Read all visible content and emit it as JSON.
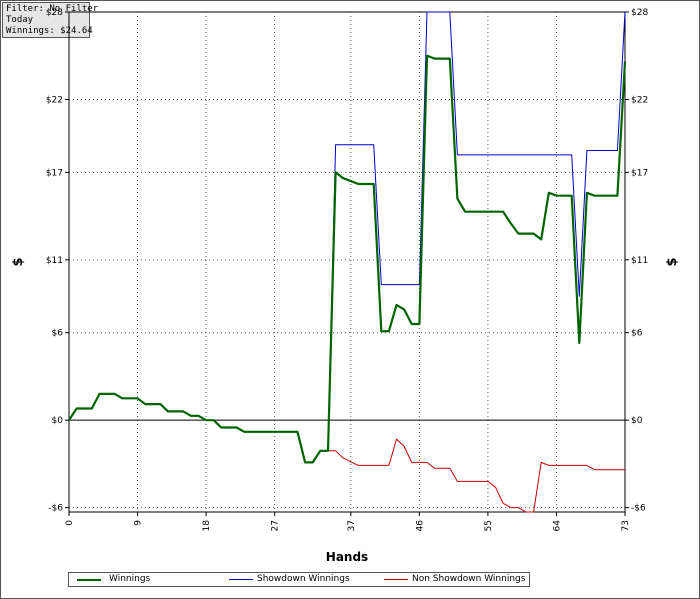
{
  "info_box": {
    "filter": "Filter: No Filter",
    "period": "Today",
    "winnings": "Winnings: $24.64"
  },
  "chart_data": {
    "type": "line",
    "title": "",
    "xlabel": "Hands",
    "ylabel_left": "$",
    "ylabel_right": "$",
    "xlim": [
      0,
      73
    ],
    "ylim": [
      -6.3,
      28
    ],
    "x_ticks": [
      0,
      9,
      18,
      27,
      37,
      46,
      55,
      64,
      73
    ],
    "y_ticks": [
      -6,
      0,
      6,
      11,
      17,
      22,
      28
    ],
    "y_tick_labels": [
      "-$6",
      "$0",
      "$6",
      "$11",
      "$17",
      "$22",
      "$28"
    ],
    "grid": true,
    "legend_position": "bottom-left",
    "series": [
      {
        "name": "Winnings",
        "color": "#006400",
        "points": [
          [
            0,
            0
          ],
          [
            1,
            0.8
          ],
          [
            3,
            0.8
          ],
          [
            4,
            1.8
          ],
          [
            6,
            1.8
          ],
          [
            7,
            1.5
          ],
          [
            9,
            1.5
          ],
          [
            10,
            1.1
          ],
          [
            12,
            1.1
          ],
          [
            13,
            0.6
          ],
          [
            15,
            0.6
          ],
          [
            16,
            0.3
          ],
          [
            17,
            0.3
          ],
          [
            18,
            0
          ],
          [
            19,
            0
          ],
          [
            20,
            -0.5
          ],
          [
            22,
            -0.5
          ],
          [
            23,
            -0.8
          ],
          [
            30,
            -0.8
          ],
          [
            31,
            -2.9
          ],
          [
            32,
            -2.9
          ],
          [
            33,
            -2.1
          ],
          [
            34,
            -2.1
          ],
          [
            35,
            17.0
          ],
          [
            36,
            16.6
          ],
          [
            38,
            16.2
          ],
          [
            40,
            16.2
          ],
          [
            41,
            6.1
          ],
          [
            42,
            6.1
          ],
          [
            43,
            7.9
          ],
          [
            44,
            7.6
          ],
          [
            45,
            6.6
          ],
          [
            46,
            6.6
          ],
          [
            47,
            25.0
          ],
          [
            48,
            24.8
          ],
          [
            50,
            24.8
          ],
          [
            51,
            15.2
          ],
          [
            52,
            14.3
          ],
          [
            55,
            14.3
          ],
          [
            57,
            14.3
          ],
          [
            58,
            13.5
          ],
          [
            59,
            12.8
          ],
          [
            61,
            12.8
          ],
          [
            62,
            12.4
          ],
          [
            63,
            15.6
          ],
          [
            64,
            15.4
          ],
          [
            66,
            15.4
          ],
          [
            67,
            5.3
          ],
          [
            68,
            15.6
          ],
          [
            69,
            15.4
          ],
          [
            72,
            15.4
          ],
          [
            73,
            24.6
          ]
        ]
      },
      {
        "name": "Showdown Winnings",
        "color": "#0000cc",
        "points": [
          [
            0,
            0
          ],
          [
            1,
            0.8
          ],
          [
            3,
            0.8
          ],
          [
            4,
            1.8
          ],
          [
            6,
            1.8
          ],
          [
            7,
            1.5
          ],
          [
            9,
            1.5
          ],
          [
            10,
            1.1
          ],
          [
            12,
            1.1
          ],
          [
            13,
            0.6
          ],
          [
            15,
            0.6
          ],
          [
            16,
            0.3
          ],
          [
            17,
            0.3
          ],
          [
            18,
            0
          ],
          [
            19,
            0
          ],
          [
            20,
            -0.5
          ],
          [
            22,
            -0.5
          ],
          [
            23,
            -0.8
          ],
          [
            30,
            -0.8
          ],
          [
            31,
            -2.9
          ],
          [
            32,
            -2.9
          ],
          [
            33,
            -2.1
          ],
          [
            34,
            -2.1
          ],
          [
            35,
            18.9
          ],
          [
            40,
            18.9
          ],
          [
            41,
            9.3
          ],
          [
            46,
            9.3
          ],
          [
            47,
            28
          ],
          [
            50,
            28
          ],
          [
            51,
            18.2
          ],
          [
            66,
            18.2
          ],
          [
            67,
            8.5
          ],
          [
            68,
            18.5
          ],
          [
            72,
            18.5
          ],
          [
            73,
            28
          ]
        ]
      },
      {
        "name": "Non Showdown Winnings",
        "color": "#cc0000",
        "points": [
          [
            34,
            -2.1
          ],
          [
            35,
            -2.1
          ],
          [
            36,
            -2.6
          ],
          [
            38,
            -3.1
          ],
          [
            42,
            -3.1
          ],
          [
            43,
            -1.3
          ],
          [
            44,
            -1.8
          ],
          [
            45,
            -2.9
          ],
          [
            47,
            -2.9
          ],
          [
            48,
            -3.3
          ],
          [
            50,
            -3.3
          ],
          [
            51,
            -4.2
          ],
          [
            55,
            -4.2
          ],
          [
            56,
            -4.6
          ],
          [
            57,
            -5.7
          ],
          [
            58,
            -6.0
          ],
          [
            59,
            -6.0
          ],
          [
            60,
            -6.3
          ],
          [
            61,
            -6.3
          ],
          [
            62,
            -2.9
          ],
          [
            63,
            -3.1
          ],
          [
            67,
            -3.1
          ],
          [
            68,
            -3.1
          ],
          [
            69,
            -3.4
          ],
          [
            73,
            -3.4
          ]
        ]
      }
    ]
  }
}
